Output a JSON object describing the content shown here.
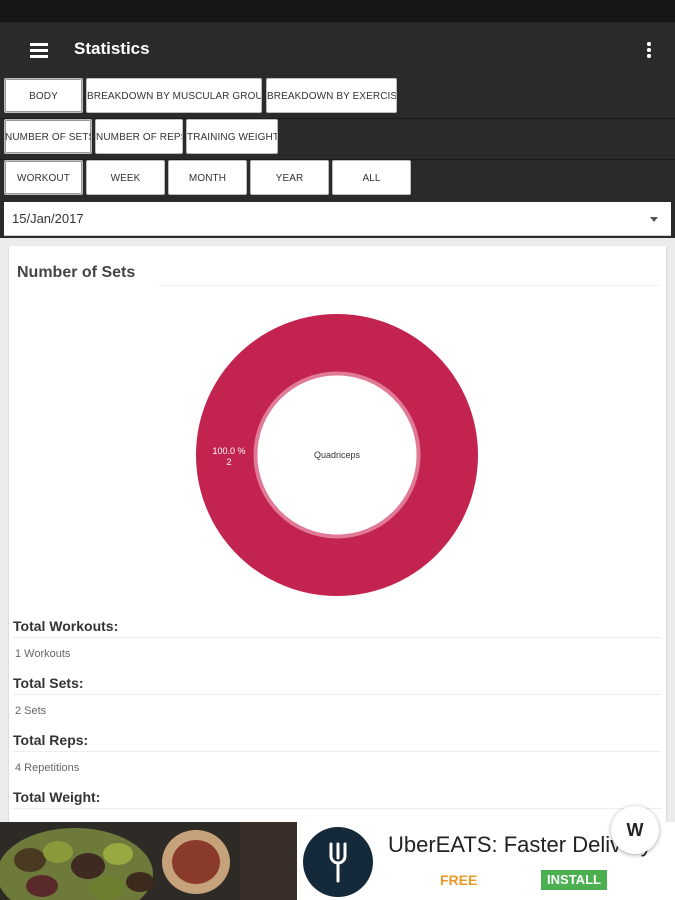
{
  "appbar": {
    "title": "Statistics",
    "menu_icon": "hamburger-menu-icon",
    "overflow_icon": "more-vert-icon"
  },
  "tabs_row1": [
    "BODY",
    "BREAKDOWN BY MUSCULAR GROUP",
    "BREAKDOWN BY EXERCISE"
  ],
  "tabs_row2": [
    "NUMBER OF SETS",
    "NUMBER OF REPS",
    "TRAINING WEIGHT"
  ],
  "tabs_row3": [
    "WORKOUT",
    "WEEK",
    "MONTH",
    "YEAR",
    "ALL"
  ],
  "date_selector": {
    "value": "15/Jan/2017"
  },
  "card": {
    "heading": "Number of Sets",
    "stats": [
      {
        "label": "Total Workouts:",
        "value": "1 Workouts"
      },
      {
        "label": "Total Sets:",
        "value": "2 Sets"
      },
      {
        "label": "Total Reps:",
        "value": "4 Repetitions"
      },
      {
        "label": "Total Weight:",
        "value": ""
      }
    ]
  },
  "chart_data": {
    "type": "pie",
    "categories": [
      "Quadriceps"
    ],
    "values": [
      2
    ],
    "percent_labels": [
      "100.0 %"
    ],
    "value_labels": [
      "2"
    ],
    "center_text": "Quadriceps",
    "colors": [
      "#c2244f"
    ],
    "hole_ring_color": "#e07a97",
    "title": "Number of Sets"
  },
  "ad": {
    "headline": "UberEATS: Faster Delivery",
    "price": "FREE",
    "install_label": "INSTALL",
    "badge": "W",
    "colors": {
      "free": "#e89a27",
      "install_bg": "#4caf50"
    }
  }
}
